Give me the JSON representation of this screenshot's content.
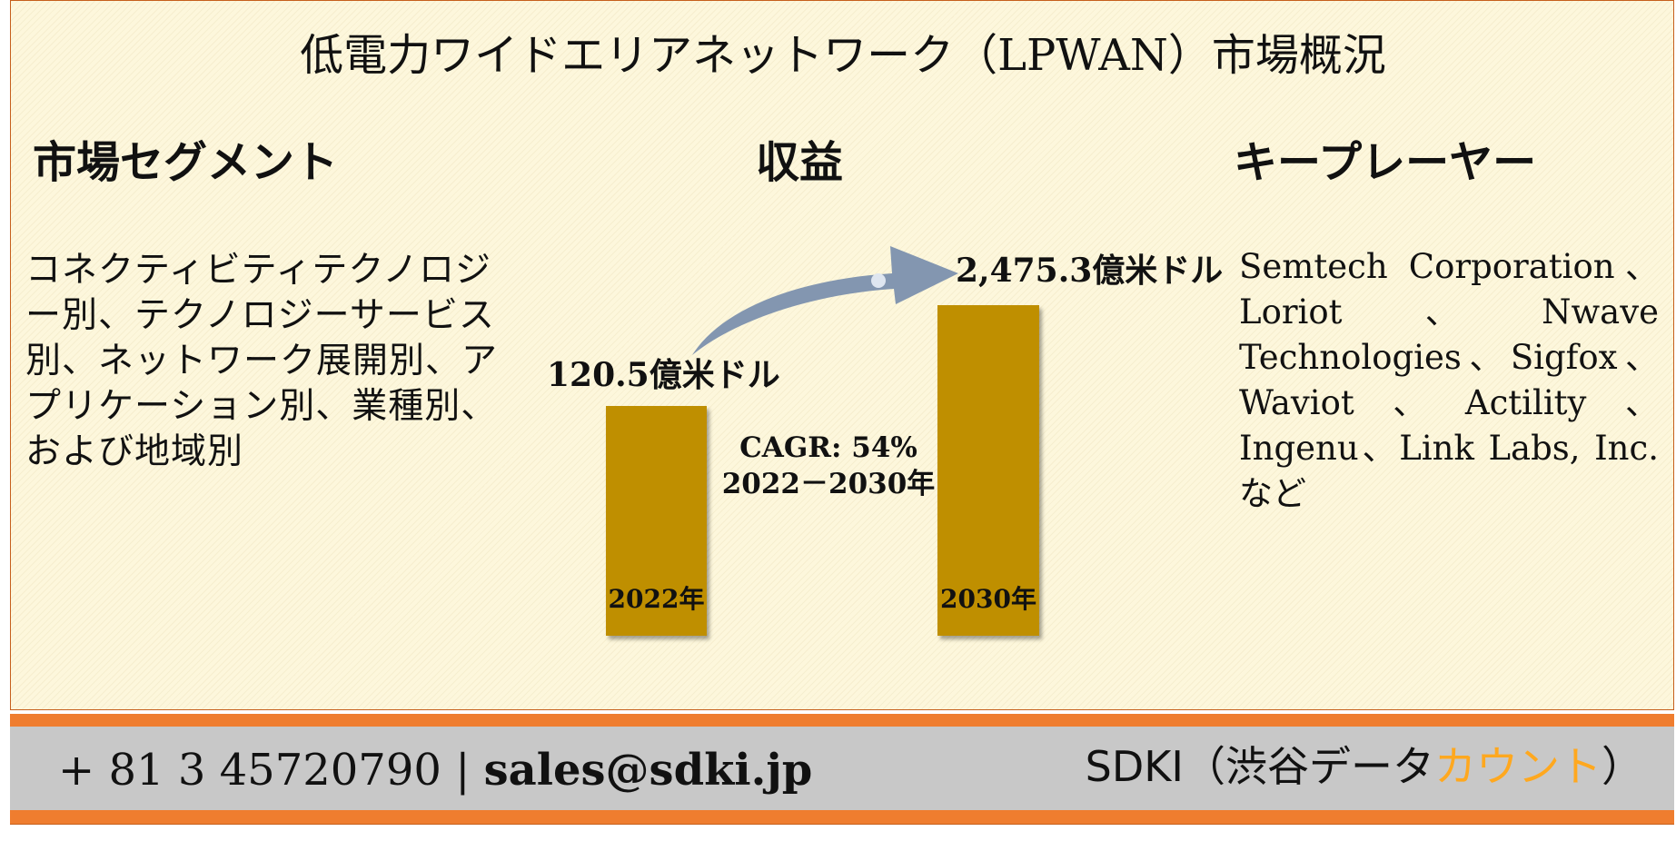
{
  "title": "低電力ワイドエリアネットワーク（LPWAN）市場概況",
  "segments": {
    "heading": "市場セグメント",
    "text": "コネクティビティテクノロジー別、テクノロジーサービス別、ネットワーク展開別、アプリケーション別、業種別、および地域別"
  },
  "revenue": {
    "heading": "収益",
    "bar_2022": {
      "year": "2022年",
      "value_label": "120.5億米ドル"
    },
    "bar_2030": {
      "year": "2030年",
      "value_label": "2,475.3億米ドル"
    },
    "cagr_line1": "CAGR: 54%",
    "cagr_line2": "2022－2030年"
  },
  "key_players": {
    "heading": "キープレーヤー",
    "text": "Semtech Corporation、Loriot、Nwave Technologies、Sigfox、Waviot、Actility、Ingenu、Link Labs, Inc.など"
  },
  "chart_data": {
    "type": "bar",
    "categories": [
      "2022年",
      "2030年"
    ],
    "values": [
      120.5,
      2475.3
    ],
    "value_labels": [
      "120.5億米ドル",
      "2,475.3億米ドル"
    ],
    "title": "収益",
    "annotation": "CAGR: 54% 2022－2030年"
  },
  "footer": {
    "phone": "+ 81 3 45720790",
    "separator": "|",
    "email": "sales@sdki.jp",
    "brand_prefix": "SDKI（渋谷データ",
    "brand_highlight": "カウント",
    "brand_suffix": "）"
  },
  "colors": {
    "bar": "#bf8f00",
    "footer_band": "#ef7d2f",
    "footer_gray": "#c8c8c8",
    "brand_highlight": "#ffa81f",
    "arrow": "#8396b0",
    "panel_bg": "#fdf7dc"
  }
}
